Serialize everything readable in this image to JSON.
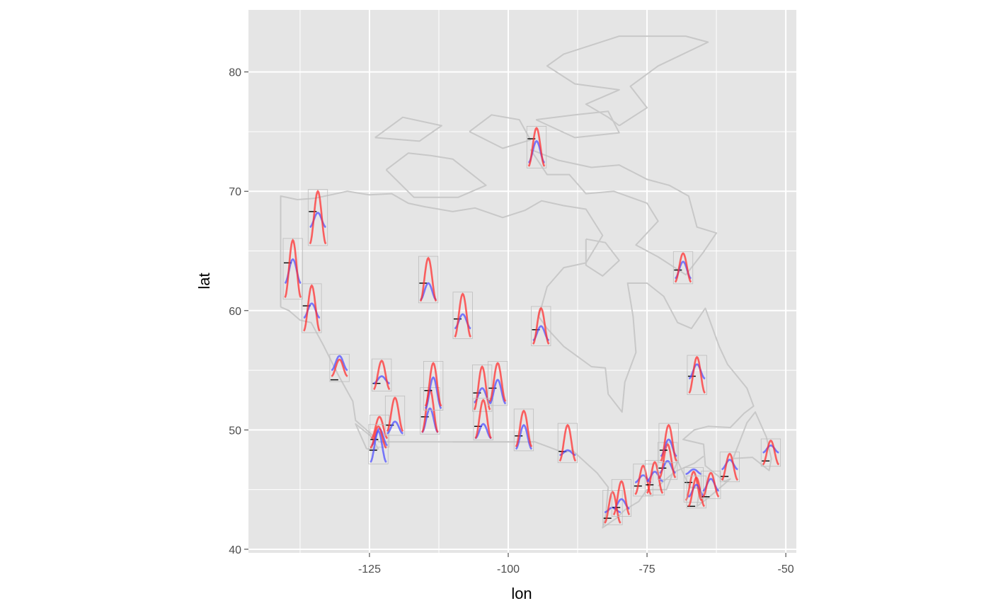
{
  "chart_data": {
    "type": "scatter",
    "title": "",
    "xlabel": "lon",
    "ylabel": "lat",
    "xlim": [
      -146.8,
      -48.1
    ],
    "ylim": [
      39.7,
      85.2
    ],
    "x_ticks": [
      -125,
      -100,
      -75,
      -50
    ],
    "x_tick_labels": [
      "-125",
      "-100",
      "-75",
      "-50"
    ],
    "y_ticks": [
      40,
      50,
      60,
      70,
      80
    ],
    "y_tick_labels": [
      "40",
      "50",
      "60",
      "70",
      "80"
    ],
    "grid": true,
    "legend": "none",
    "colors": {
      "panel": "#e5e5e5",
      "grid": "#ffffff",
      "basemap": "#c8c8c8",
      "red_series": "#ff3030",
      "blue_series": "#5050ff",
      "mean_marker": "#000000",
      "station_box": "#bdbdbd"
    },
    "stations": [
      {
        "lon": -138.8,
        "lat": 64.0,
        "red_mid": 63.5,
        "red_amp": 2.4,
        "blue_mid": 63.3,
        "blue_amp": 1.0,
        "mean": 64.0
      },
      {
        "lon": -134.3,
        "lat": 68.3,
        "red_mid": 67.8,
        "red_amp": 2.2,
        "blue_mid": 67.6,
        "blue_amp": 0.6,
        "mean": 68.3
      },
      {
        "lon": -135.4,
        "lat": 60.4,
        "red_mid": 60.2,
        "red_amp": 1.9,
        "blue_mid": 60.0,
        "blue_amp": 0.6,
        "mean": 60.4
      },
      {
        "lon": -130.4,
        "lat": 54.3,
        "red_mid": 55.2,
        "red_amp": 0.7,
        "blue_mid": 55.6,
        "blue_amp": 0.6,
        "mean": 54.2
      },
      {
        "lon": -122.8,
        "lat": 53.9,
        "red_mid": 54.6,
        "red_amp": 1.2,
        "blue_mid": 54.2,
        "blue_amp": 0.3,
        "mean": 53.9
      },
      {
        "lon": -123.2,
        "lat": 49.2,
        "red_mid": 50.2,
        "red_amp": 0.9,
        "blue_mid": 49.4,
        "blue_amp": 0.7,
        "mean": 49.2
      },
      {
        "lon": -123.4,
        "lat": 48.4,
        "red_mid": 49.4,
        "red_amp": 0.9,
        "blue_mid": 48.6,
        "blue_amp": 1.3,
        "mean": 48.3
      },
      {
        "lon": -120.4,
        "lat": 50.4,
        "red_mid": 51.3,
        "red_amp": 1.4,
        "blue_mid": 50.2,
        "blue_amp": 0.5,
        "mean": 50.4
      },
      {
        "lon": -114.1,
        "lat": 51.1,
        "red_mid": 51.6,
        "red_amp": 1.8,
        "blue_mid": 50.8,
        "blue_amp": 1.0,
        "mean": 51.1
      },
      {
        "lon": -113.5,
        "lat": 53.4,
        "red_mid": 53.8,
        "red_amp": 1.8,
        "blue_mid": 53.1,
        "blue_amp": 1.3,
        "mean": 53.3
      },
      {
        "lon": -114.4,
        "lat": 62.3,
        "red_mid": 62.6,
        "red_amp": 1.8,
        "blue_mid": 61.6,
        "blue_amp": 0.7,
        "mean": 62.3
      },
      {
        "lon": -108.2,
        "lat": 59.3,
        "red_mid": 59.6,
        "red_amp": 1.8,
        "blue_mid": 59.1,
        "blue_amp": 0.6,
        "mean": 59.3
      },
      {
        "lon": -104.7,
        "lat": 53.2,
        "red_mid": 53.5,
        "red_amp": 1.8,
        "blue_mid": 52.9,
        "blue_amp": 0.6,
        "mean": 53.1
      },
      {
        "lon": -104.5,
        "lat": 50.3,
        "red_mid": 50.9,
        "red_amp": 1.6,
        "blue_mid": 49.9,
        "blue_amp": 0.6,
        "mean": 50.3
      },
      {
        "lon": -101.9,
        "lat": 53.6,
        "red_mid": 54.0,
        "red_amp": 1.6,
        "blue_mid": 53.2,
        "blue_amp": 1.0,
        "mean": 53.5
      },
      {
        "lon": -97.2,
        "lat": 49.6,
        "red_mid": 50.1,
        "red_amp": 1.5,
        "blue_mid": 49.4,
        "blue_amp": 1.0,
        "mean": 49.5
      },
      {
        "lon": -94.1,
        "lat": 58.5,
        "red_mid": 58.7,
        "red_amp": 1.5,
        "blue_mid": 58.1,
        "blue_amp": 0.6,
        "mean": 58.4
      },
      {
        "lon": -94.9,
        "lat": 74.3,
        "red_mid": 73.7,
        "red_amp": 1.6,
        "blue_mid": 73.3,
        "blue_amp": 0.9,
        "mean": 74.4
      },
      {
        "lon": -89.3,
        "lat": 48.2,
        "red_mid": 48.9,
        "red_amp": 1.5,
        "blue_mid": 48.1,
        "blue_amp": 0.2,
        "mean": 48.2
      },
      {
        "lon": -81.2,
        "lat": 42.6,
        "red_mid": 43.5,
        "red_amp": 1.3,
        "blue_mid": 43.3,
        "blue_amp": 0.2,
        "mean": 42.6
      },
      {
        "lon": -79.6,
        "lat": 43.7,
        "red_mid": 44.3,
        "red_amp": 1.4,
        "blue_mid": 43.8,
        "blue_amp": 0.4,
        "mean": 43.5
      },
      {
        "lon": -75.7,
        "lat": 45.3,
        "red_mid": 45.8,
        "red_amp": 1.2,
        "blue_mid": 45.9,
        "blue_amp": 0.3,
        "mean": 45.3
      },
      {
        "lon": -73.6,
        "lat": 45.5,
        "red_mid": 46.0,
        "red_amp": 1.3,
        "blue_mid": 46.1,
        "blue_amp": 0.4,
        "mean": 45.4
      },
      {
        "lon": -71.3,
        "lat": 46.8,
        "red_mid": 47.4,
        "red_amp": 1.4,
        "blue_mid": 46.9,
        "blue_amp": 0.5,
        "mean": 46.8
      },
      {
        "lon": -71.1,
        "lat": 48.3,
        "red_mid": 48.9,
        "red_amp": 1.5,
        "blue_mid": 48.5,
        "blue_amp": 0.7,
        "mean": 48.3
      },
      {
        "lon": -68.5,
        "lat": 63.7,
        "red_mid": 63.6,
        "red_amp": 1.2,
        "blue_mid": 63.4,
        "blue_amp": 0.7,
        "mean": 63.4
      },
      {
        "lon": -66.0,
        "lat": 54.8,
        "red_mid": 54.6,
        "red_amp": 1.5,
        "blue_mid": 54.9,
        "blue_amp": 0.6,
        "mean": 54.5
      },
      {
        "lon": -66.6,
        "lat": 45.9,
        "red_mid": 45.3,
        "red_amp": 1.2,
        "blue_mid": 46.5,
        "blue_amp": 0.2,
        "mean": 45.6
      },
      {
        "lon": -66.1,
        "lat": 43.8,
        "red_mid": 44.8,
        "red_amp": 1.2,
        "blue_mid": 44.9,
        "blue_amp": 0.5,
        "mean": 43.6
      },
      {
        "lon": -63.5,
        "lat": 44.6,
        "red_mid": 45.4,
        "red_amp": 1.0,
        "blue_mid": 45.4,
        "blue_amp": 0.5,
        "mean": 44.4
      },
      {
        "lon": -60.1,
        "lat": 46.2,
        "red_mid": 46.9,
        "red_amp": 1.1,
        "blue_mid": 47.1,
        "blue_amp": 0.4,
        "mean": 46.1
      },
      {
        "lon": -52.7,
        "lat": 47.6,
        "red_mid": 48.1,
        "red_amp": 1.0,
        "blue_mid": 48.4,
        "blue_amp": 0.3,
        "mean": 47.4
      }
    ]
  }
}
